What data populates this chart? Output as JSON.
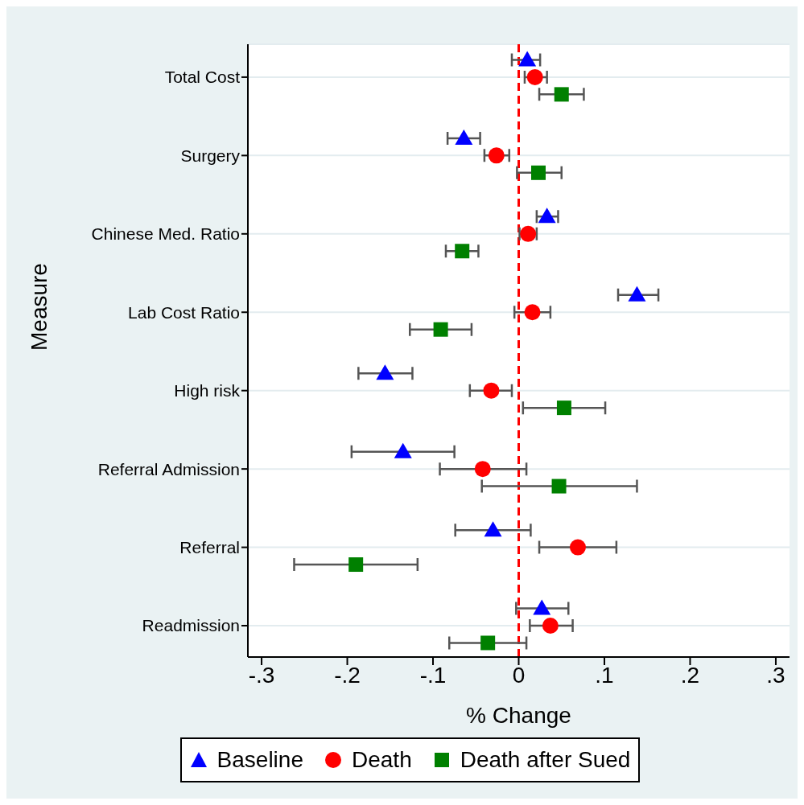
{
  "chart_data": {
    "type": "scatter",
    "orientation": "horizontal",
    "xlabel": "% Change",
    "ylabel": "Measure",
    "categories": [
      "Total Cost",
      "Surgery",
      "Chinese Med. Ratio",
      "Lab Cost Ratio",
      "High risk",
      "Referral Admission",
      "Referral",
      "Readmission"
    ],
    "series": [
      {
        "name": "Baseline",
        "color": "#0000ff",
        "marker": "triangle",
        "values": [
          0.01,
          -0.064,
          0.033,
          0.138,
          -0.156,
          -0.135,
          -0.03,
          0.027
        ],
        "errors": [
          [
            -0.008,
            0.025
          ],
          [
            -0.083,
            -0.045
          ],
          [
            0.021,
            0.046
          ],
          [
            0.116,
            0.163
          ],
          [
            -0.187,
            -0.124
          ],
          [
            -0.195,
            -0.075
          ],
          [
            -0.074,
            0.014
          ],
          [
            -0.003,
            0.058
          ]
        ]
      },
      {
        "name": "Death",
        "color": "#ff0000",
        "marker": "circle",
        "values": [
          0.019,
          -0.026,
          0.011,
          0.016,
          -0.032,
          -0.042,
          0.069,
          0.037
        ],
        "errors": [
          [
            0.007,
            0.033
          ],
          [
            -0.04,
            -0.011
          ],
          [
            0.001,
            0.021
          ],
          [
            -0.005,
            0.037
          ],
          [
            -0.057,
            -0.008
          ],
          [
            -0.092,
            0.009
          ],
          [
            0.024,
            0.114
          ],
          [
            0.013,
            0.063
          ]
        ]
      },
      {
        "name": "Death after Sued",
        "color": "#008000",
        "marker": "square",
        "values": [
          0.05,
          0.023,
          -0.066,
          -0.091,
          0.053,
          0.047,
          -0.19,
          -0.036
        ],
        "errors": [
          [
            0.024,
            0.076
          ],
          [
            -0.002,
            0.05
          ],
          [
            -0.085,
            -0.047
          ],
          [
            -0.127,
            -0.055
          ],
          [
            0.005,
            0.101
          ],
          [
            -0.043,
            0.138
          ],
          [
            -0.262,
            -0.118
          ],
          [
            -0.081,
            0.009
          ]
        ]
      }
    ],
    "xlim": [
      -0.316,
      0.316
    ],
    "xticks": [
      {
        "value": -0.3,
        "label": "-.3"
      },
      {
        "value": -0.2,
        "label": "-.2"
      },
      {
        "value": -0.1,
        "label": "-.1"
      },
      0,
      {
        "value": 0.1,
        "label": ".1"
      },
      {
        "value": 0.2,
        "label": ".2"
      },
      {
        "value": 0.3,
        "label": ".3"
      }
    ],
    "grid": "y",
    "legend": "bottom",
    "ref_lines": [
      {
        "axis": "x",
        "value": 0,
        "color": "#ff0000",
        "line_style": "dashed"
      }
    ]
  }
}
